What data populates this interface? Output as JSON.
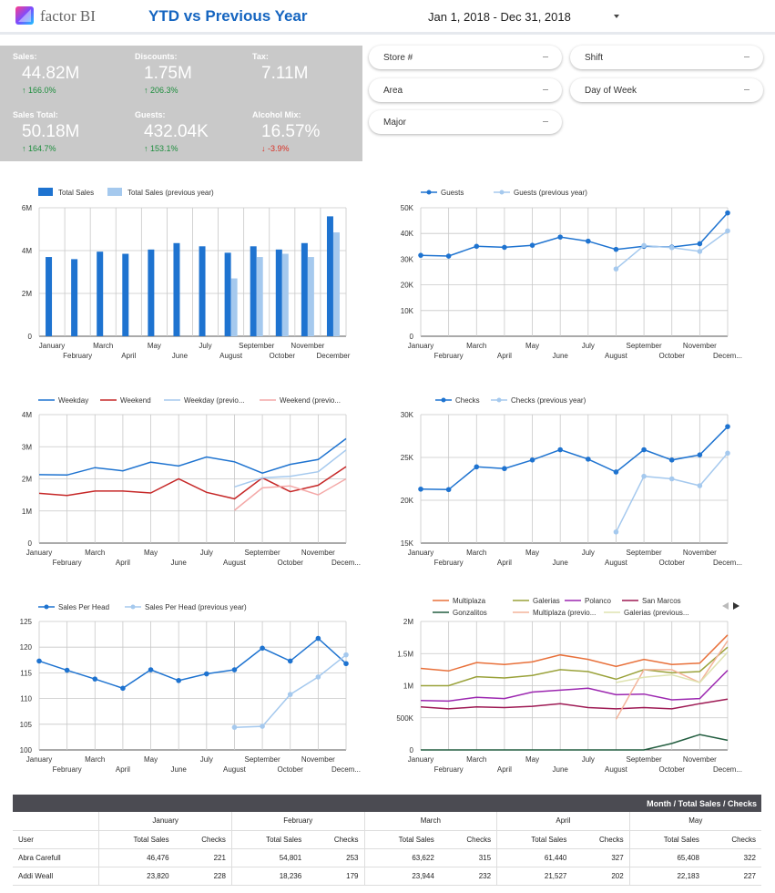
{
  "header": {
    "brand": "factor BI",
    "title": "YTD vs Previous Year",
    "date_range": "Jan 1, 2018 - Dec 31, 2018"
  },
  "kpis": [
    {
      "label": "Sales:",
      "value": "44.82M",
      "delta": "↑ 166.0%",
      "dir": "up"
    },
    {
      "label": "Discounts:",
      "value": "1.75M",
      "delta": "↑ 206.3%",
      "dir": "up"
    },
    {
      "label": "Tax:",
      "value": "7.11M",
      "delta": "",
      "dir": "up"
    },
    {
      "label": "Sales Total:",
      "value": "50.18M",
      "delta": "↑ 164.7%",
      "dir": "up"
    },
    {
      "label": "Guests:",
      "value": "432.04K",
      "delta": "↑ 153.1%",
      "dir": "up"
    },
    {
      "label": "Alcohol Mix:",
      "value": "16.57%",
      "delta": "↓ -3.9%",
      "dir": "down"
    }
  ],
  "filters": {
    "store": "Store #",
    "shift": "Shift",
    "area": "Area",
    "day_of_week": "Day of Week",
    "major": "Major"
  },
  "colors": {
    "primary": "#1e73d0",
    "primary_light": "#a5c9ee",
    "red": "#c62828",
    "red_light": "#f4a9a8",
    "panel": "#c9c9c9"
  },
  "chart_data": [
    {
      "type": "bar",
      "id": "sales",
      "legend": [
        "Total Sales",
        "Total Sales (previous year)"
      ],
      "categories": [
        "January",
        "February",
        "March",
        "April",
        "May",
        "June",
        "July",
        "August",
        "September",
        "October",
        "November",
        "December"
      ],
      "yticks": [
        "0",
        "2M",
        "4M",
        "6M"
      ],
      "ylim": [
        0,
        6000000
      ],
      "series": [
        {
          "name": "Total Sales",
          "values": [
            3700000,
            3600000,
            3950000,
            3850000,
            4050000,
            4350000,
            4200000,
            3900000,
            4200000,
            4050000,
            4350000,
            5600000
          ]
        },
        {
          "name": "Total Sales (previous year)",
          "values": [
            null,
            null,
            null,
            null,
            null,
            null,
            null,
            2700000,
            3700000,
            3850000,
            3700000,
            4850000
          ]
        }
      ]
    },
    {
      "type": "line",
      "id": "guests",
      "legend": [
        "Guests",
        "Guests (previous year)"
      ],
      "categories": [
        "January",
        "February",
        "March",
        "April",
        "May",
        "June",
        "July",
        "August",
        "September",
        "October",
        "November",
        "Decem..."
      ],
      "yticks": [
        "0",
        "10K",
        "20K",
        "30K",
        "40K",
        "50K"
      ],
      "ylim": [
        0,
        50000
      ],
      "series": [
        {
          "name": "Guests",
          "values": [
            31500,
            31200,
            35000,
            34600,
            35400,
            38600,
            37000,
            33800,
            35000,
            34700,
            36000,
            48000
          ]
        },
        {
          "name": "Guests (previous year)",
          "values": [
            null,
            null,
            null,
            null,
            null,
            null,
            null,
            26200,
            35300,
            34500,
            33000,
            41000
          ]
        }
      ]
    },
    {
      "type": "line",
      "id": "weekday",
      "legend": [
        "Weekday",
        "Weekend",
        "Weekday (previo...",
        "Weekend (previo..."
      ],
      "categories": [
        "January",
        "February",
        "March",
        "April",
        "May",
        "June",
        "July",
        "August",
        "September",
        "October",
        "November",
        "Decem..."
      ],
      "yticks": [
        "0",
        "1M",
        "2M",
        "3M",
        "4M"
      ],
      "ylim": [
        0,
        4000000
      ],
      "series": [
        {
          "name": "Weekday",
          "values": [
            2130000,
            2120000,
            2350000,
            2250000,
            2520000,
            2400000,
            2680000,
            2530000,
            2180000,
            2450000,
            2600000,
            3250000
          ]
        },
        {
          "name": "Weekend",
          "values": [
            1550000,
            1480000,
            1620000,
            1620000,
            1560000,
            2000000,
            1580000,
            1380000,
            2030000,
            1600000,
            1800000,
            2380000
          ]
        },
        {
          "name": "Weekday (previo...",
          "values": [
            null,
            null,
            null,
            null,
            null,
            null,
            null,
            1750000,
            2030000,
            2080000,
            2220000,
            2900000
          ]
        },
        {
          "name": "Weekend (previo...",
          "values": [
            null,
            null,
            null,
            null,
            null,
            null,
            null,
            1020000,
            1720000,
            1780000,
            1500000,
            2000000
          ]
        }
      ]
    },
    {
      "type": "line",
      "id": "checks",
      "legend": [
        "Checks",
        "Checks (previous year)"
      ],
      "categories": [
        "January",
        "February",
        "March",
        "April",
        "May",
        "June",
        "July",
        "August",
        "September",
        "October",
        "November",
        "Decem..."
      ],
      "yticks": [
        "15K",
        "20K",
        "25K",
        "30K"
      ],
      "ylim": [
        15000,
        30000
      ],
      "series": [
        {
          "name": "Checks",
          "values": [
            21300,
            21250,
            23900,
            23700,
            24700,
            25900,
            24800,
            23300,
            25900,
            24700,
            25300,
            28600
          ]
        },
        {
          "name": "Checks (previous year)",
          "values": [
            null,
            null,
            null,
            null,
            null,
            null,
            null,
            16300,
            22800,
            22500,
            21700,
            25500
          ]
        }
      ]
    },
    {
      "type": "line",
      "id": "sph",
      "legend": [
        "Sales Per Head",
        "Sales Per Head (previous year)"
      ],
      "categories": [
        "January",
        "February",
        "March",
        "April",
        "May",
        "June",
        "July",
        "August",
        "September",
        "October",
        "November",
        "Decem..."
      ],
      "yticks": [
        "100",
        "105",
        "110",
        "115",
        "120",
        "125"
      ],
      "ylim": [
        100,
        125
      ],
      "series": [
        {
          "name": "Sales Per Head",
          "values": [
            117.3,
            115.5,
            113.8,
            112,
            115.6,
            113.5,
            114.8,
            115.6,
            119.8,
            117.3,
            121.7,
            116.8
          ]
        },
        {
          "name": "Sales Per Head (previous year)",
          "values": [
            null,
            null,
            null,
            null,
            null,
            null,
            null,
            104.4,
            104.6,
            110.8,
            114.2,
            118.5
          ]
        }
      ]
    },
    {
      "type": "line",
      "id": "stores",
      "legend": [
        "Multiplaza",
        "Galerias",
        "Polanco",
        "San Marcos",
        "Gonzalitos",
        "Multiplaza (previo...",
        "Galerias (previous..."
      ],
      "categories": [
        "January",
        "February",
        "March",
        "April",
        "May",
        "June",
        "July",
        "August",
        "September",
        "October",
        "November",
        "Decem..."
      ],
      "yticks": [
        "0",
        "500K",
        "1M",
        "1.5M",
        "2M"
      ],
      "ylim": [
        0,
        2000000
      ],
      "series": [
        {
          "name": "Multiplaza",
          "values": [
            1270000,
            1230000,
            1360000,
            1330000,
            1370000,
            1480000,
            1410000,
            1300000,
            1410000,
            1330000,
            1350000,
            1790000
          ]
        },
        {
          "name": "Galerias",
          "values": [
            1000000,
            1000000,
            1140000,
            1120000,
            1160000,
            1250000,
            1220000,
            1100000,
            1250000,
            1200000,
            1220000,
            1600000
          ]
        },
        {
          "name": "Polanco",
          "values": [
            770000,
            760000,
            820000,
            800000,
            900000,
            930000,
            960000,
            860000,
            870000,
            780000,
            800000,
            1240000
          ]
        },
        {
          "name": "San Marcos",
          "values": [
            670000,
            640000,
            670000,
            660000,
            680000,
            720000,
            660000,
            640000,
            660000,
            640000,
            720000,
            790000
          ]
        },
        {
          "name": "Gonzalitos",
          "values": [
            0,
            0,
            0,
            0,
            0,
            0,
            0,
            0,
            0,
            100000,
            240000,
            150000
          ]
        },
        {
          "name": "Multiplaza (previo...",
          "values": [
            null,
            null,
            null,
            null,
            null,
            null,
            null,
            480000,
            1250000,
            1250000,
            1050000,
            1700000
          ]
        },
        {
          "name": "Galerias (previous...",
          "values": [
            null,
            null,
            null,
            null,
            null,
            null,
            null,
            1050000,
            1130000,
            1170000,
            1050000,
            1520000
          ]
        }
      ]
    }
  ],
  "table": {
    "title": "Month / Total Sales / Checks",
    "months": [
      "January",
      "February",
      "March",
      "April",
      "May"
    ],
    "col_sales": "Total Sales",
    "col_checks": "Checks",
    "user_header": "User",
    "rows": [
      {
        "user": "Abra Carefull",
        "vals": [
          "46,476",
          "221",
          "54,801",
          "253",
          "63,622",
          "315",
          "61,440",
          "327",
          "65,408",
          "322"
        ]
      },
      {
        "user": "Addi Weall",
        "vals": [
          "23,820",
          "228",
          "18,236",
          "179",
          "23,944",
          "232",
          "21,527",
          "202",
          "22,183",
          "227"
        ]
      }
    ]
  }
}
